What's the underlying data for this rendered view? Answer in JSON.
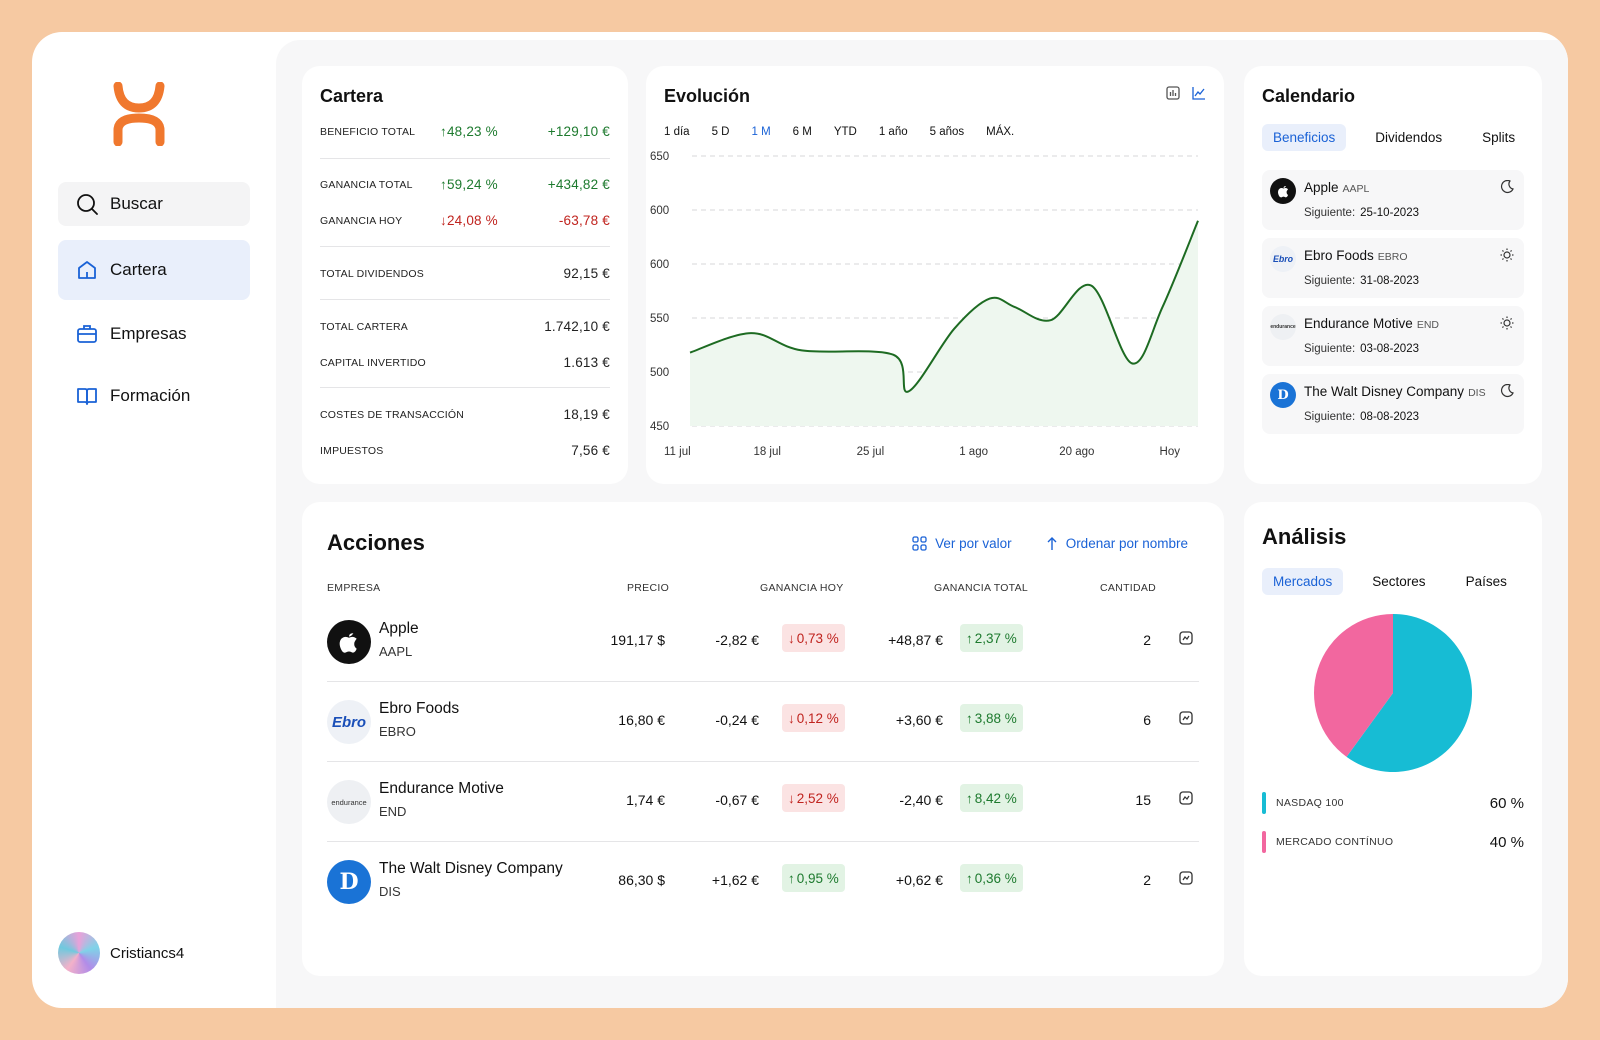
{
  "sidebar": {
    "search": "Buscar",
    "items": [
      "Cartera",
      "Empresas",
      "Formación"
    ],
    "user": "Cristiancs4"
  },
  "cartera": {
    "title": "Cartera",
    "beneficio": {
      "label": "Beneficio total",
      "pct": "48,23 %",
      "val": "+129,10 €"
    },
    "ganancia_total": {
      "label": "Ganancia total",
      "pct": "59,24 %",
      "val": "+434,82 €"
    },
    "ganancia_hoy": {
      "label": "Ganancia hoy",
      "pct": "24,08 %",
      "val": "-63,78 €"
    },
    "dividendos": {
      "label": "Total dividendos",
      "val": "92,15 €"
    },
    "total_cartera": {
      "label": "Total cartera",
      "val": "1.742,10 €"
    },
    "capital": {
      "label": "Capital invertido",
      "val": "1.613 €"
    },
    "costes": {
      "label": "Costes de transacción",
      "val": "18,19 €"
    },
    "impuestos": {
      "label": "Impuestos",
      "val": "7,56 €"
    }
  },
  "evolucion": {
    "title": "Evolución",
    "ranges": [
      "1 día",
      "5 D",
      "1 M",
      "6 M",
      "YTD",
      "1 año",
      "5 años",
      "MÁX."
    ],
    "selected_range": "1 M"
  },
  "chart_data": {
    "type": "area",
    "ytick_labels": [
      "650",
      "600",
      "600",
      "550",
      "500",
      "450"
    ],
    "xtick_labels": [
      "11 jul",
      "18 jul",
      "25 jul",
      "1 ago",
      "20 ago",
      "Hoy"
    ],
    "ylim": [
      450,
      700
    ],
    "x": [
      0,
      0.12,
      0.22,
      0.4,
      0.43,
      0.52,
      0.59,
      0.64,
      0.71,
      0.79,
      0.87,
      0.93,
      1
    ],
    "values": [
      518,
      536,
      520,
      516,
      482,
      540,
      568,
      560,
      548,
      580,
      508,
      560,
      640
    ],
    "color": "#1d6b22",
    "fill": "#eef7ef",
    "grid": true
  },
  "calendario": {
    "title": "Calendario",
    "tabs": [
      "Beneficios",
      "Dividendos",
      "Splits"
    ],
    "next_label": "Siguiente:",
    "events": [
      {
        "name": "Apple",
        "ticker": "AAPL",
        "date": "25-10-2023",
        "logo": "",
        "time": "moon-icon"
      },
      {
        "name": "Ebro Foods",
        "ticker": "EBRO",
        "date": "31-08-2023",
        "logo": "Ebro",
        "time": "sun-icon"
      },
      {
        "name": "Endurance Motive",
        "ticker": "END",
        "date": "03-08-2023",
        "logo": "endurance",
        "time": "sun-icon"
      },
      {
        "name": "The Walt Disney Company",
        "ticker": "DIS",
        "date": "08-08-2023",
        "logo": "D",
        "time": "moon-icon"
      }
    ]
  },
  "acciones": {
    "title": "Acciones",
    "view_by_value": "Ver por valor",
    "order_by_name": "Ordenar por nombre",
    "headers": [
      "Empresa",
      "Precio",
      "Ganancia hoy",
      "Ganancia total",
      "Cantidad"
    ],
    "rows": [
      {
        "name": "Apple",
        "ticker": "AAPL",
        "logo": "",
        "price": "191,17 $",
        "hoy_val": "-2,82 €",
        "hoy_pct": "0,73 %",
        "tot_val": "+48,87 €",
        "tot_pct": "2,37 %",
        "qty": "2"
      },
      {
        "name": "Ebro Foods",
        "ticker": "EBRO",
        "logo": "Ebro",
        "price": "16,80 €",
        "hoy_val": "-0,24 €",
        "hoy_pct": "0,12 %",
        "tot_val": "+3,60 €",
        "tot_pct": "3,88 %",
        "qty": "6"
      },
      {
        "name": "Endurance Motive",
        "ticker": "END",
        "logo": "endurance",
        "price": "1,74 €",
        "hoy_val": "-0,67 €",
        "hoy_pct": "2,52 %",
        "tot_val": "-2,40 €",
        "tot_pct": "8,42 %",
        "qty": "15"
      },
      {
        "name": "The Walt Disney Company",
        "ticker": "DIS",
        "logo": "D",
        "price": "86,30 $",
        "hoy_val": "+1,62 €",
        "hoy_pct": "0,95 %",
        "tot_val": "+0,62 €",
        "tot_pct": "0,36 %",
        "qty": "2"
      }
    ]
  },
  "analisis": {
    "title": "Análisis",
    "tabs": [
      "Mercados",
      "Sectores",
      "Países"
    ],
    "items": [
      {
        "label": "Nasdaq 100",
        "value": "60 %",
        "color": "#17bcd4",
        "fraction": 0.6
      },
      {
        "label": "Mercado contínuo",
        "value": "40 %",
        "color": "#f2679f",
        "fraction": 0.4
      }
    ]
  },
  "colors": {
    "accent": "#1a62d6",
    "brand": "#f0782e",
    "positive": "#1d7a2e",
    "negative": "#c0231e"
  }
}
